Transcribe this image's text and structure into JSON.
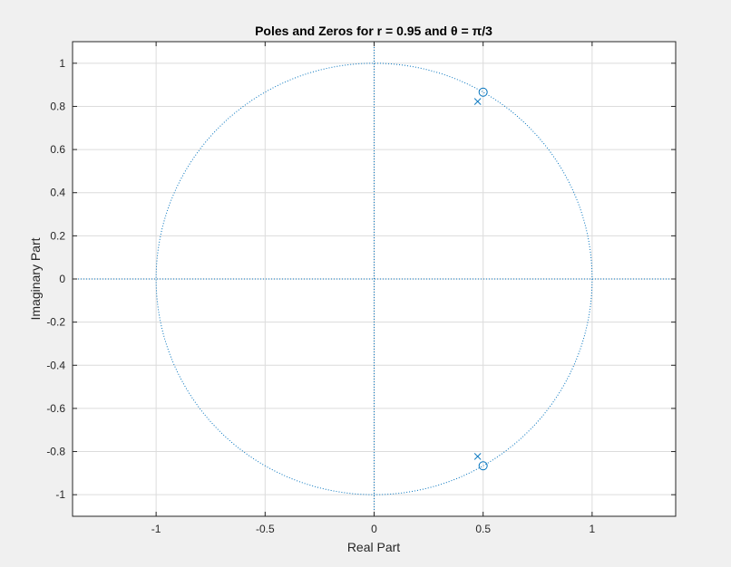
{
  "chart_data": {
    "type": "scatter",
    "title": "Poles and Zeros for r = 0.95 and θ = π/3",
    "xlabel": "Real Part",
    "ylabel": "Imaginary Part",
    "xlim": [
      -1.3833,
      1.3833
    ],
    "ylim": [
      -1.1,
      1.1
    ],
    "x_ticks": [
      -1,
      -0.5,
      0,
      0.5,
      1
    ],
    "x_tick_labels": [
      "-1",
      "-0.5",
      "0",
      "0.5",
      "1"
    ],
    "y_ticks": [
      1,
      0.8,
      0.6,
      0.4,
      0.2,
      0,
      -0.2,
      -0.4,
      -0.6,
      -0.8,
      -1
    ],
    "y_tick_labels": [
      "1",
      "0.8",
      "0.6",
      "0.4",
      "0.2",
      "0",
      "-0.2",
      "-0.4",
      "-0.6",
      "-0.8",
      "-1"
    ],
    "grid": true,
    "unit_circle": true,
    "series": [
      {
        "marker": "o",
        "color": "#0072bd",
        "points": [
          [
            0.5,
            0.866
          ],
          [
            0.5,
            -0.866
          ]
        ]
      },
      {
        "marker": "x",
        "color": "#0072bd",
        "points": [
          [
            0.475,
            0.8227
          ],
          [
            0.475,
            -0.8227
          ]
        ]
      }
    ]
  }
}
